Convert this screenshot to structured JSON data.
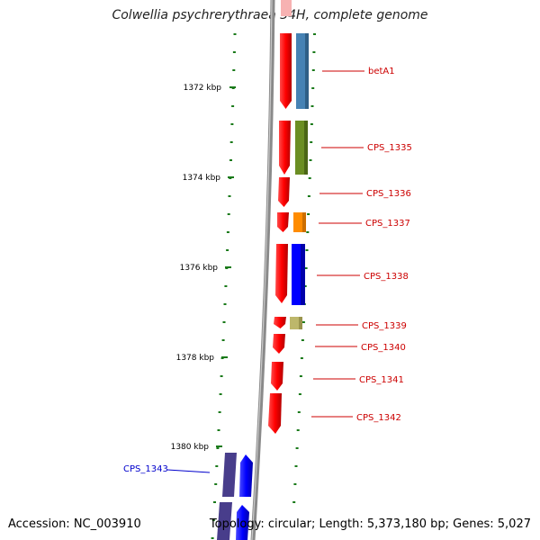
{
  "title": "Colwellia psychrerythraea 34H, complete genome",
  "accession": "Accession: NC_003910",
  "topology": "Topology: circular; Length: 5,373,180 bp; Genes: 5,027",
  "ticks": [
    {
      "kbp": 1372,
      "label": "1372 kbp"
    },
    {
      "kbp": 1374,
      "label": "1374 kbp"
    },
    {
      "kbp": 1376,
      "label": "1376 kbp"
    },
    {
      "kbp": 1378,
      "label": "1378 kbp"
    },
    {
      "kbp": 1380,
      "label": "1380 kbp"
    }
  ],
  "genes": [
    {
      "name": "betA1",
      "color": "#4682b4",
      "label_color": "#cc0000"
    },
    {
      "name": "CPS_1335",
      "color": "#6b8e23",
      "label_color": "#cc0000"
    },
    {
      "name": "CPS_1336",
      "color": "",
      "label_color": "#cc0000"
    },
    {
      "name": "CPS_1337",
      "color": "#ff8c00",
      "label_color": "#cc0000"
    },
    {
      "name": "CPS_1338",
      "color": "#0000ff",
      "label_color": "#cc0000"
    },
    {
      "name": "CPS_1339",
      "color": "#bdb76b",
      "label_color": "#cc0000"
    },
    {
      "name": "CPS_1340",
      "color": "",
      "label_color": "#cc0000"
    },
    {
      "name": "CPS_1341",
      "color": "",
      "label_color": "#cc0000"
    },
    {
      "name": "CPS_1342",
      "color": "",
      "label_color": "#cc0000"
    },
    {
      "name": "CPS_1343",
      "color": "#483d8b",
      "label_color": "#0000cc"
    }
  ],
  "colors": {
    "strand_arrow": "#ff0000",
    "reverse_strand_arrow": "#0000ff",
    "backbone": "#808080",
    "tick": "#1a7a1a"
  }
}
